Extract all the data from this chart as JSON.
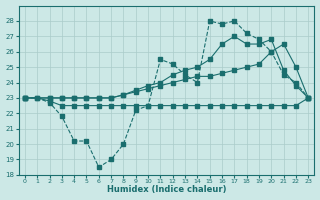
{
  "xlabel": "Humidex (Indice chaleur)",
  "xlim": [
    -0.5,
    23.5
  ],
  "ylim": [
    18,
    29
  ],
  "yticks": [
    18,
    19,
    20,
    21,
    22,
    23,
    24,
    25,
    26,
    27,
    28
  ],
  "xticks": [
    0,
    1,
    2,
    3,
    4,
    5,
    6,
    7,
    8,
    9,
    10,
    11,
    12,
    13,
    14,
    15,
    16,
    17,
    18,
    19,
    20,
    21,
    22,
    23
  ],
  "bg_color": "#cce8e6",
  "grid_color": "#aaccca",
  "line_color": "#1a6e6e",
  "lines": [
    {
      "x": [
        0,
        1,
        2,
        3,
        4,
        5,
        6,
        7,
        8,
        9,
        10,
        11,
        12,
        13,
        14,
        15,
        16,
        17,
        18,
        19,
        20,
        21,
        22,
        23
      ],
      "y": [
        23,
        23,
        22.8,
        22.5,
        22.5,
        22.5,
        22.5,
        22.5,
        22.5,
        22.5,
        22.5,
        22.5,
        22.5,
        22.5,
        22.5,
        22.5,
        22.5,
        22.5,
        22.5,
        22.5,
        22.5,
        22.5,
        22.5,
        23
      ],
      "style": "-",
      "marker": "s",
      "markersize": 2.5,
      "lw": 0.8
    },
    {
      "x": [
        0,
        2,
        3,
        4,
        5,
        6,
        7,
        8,
        9,
        10,
        11,
        12,
        13,
        14,
        15,
        16,
        17,
        18,
        19,
        20,
        21,
        22,
        23
      ],
      "y": [
        23,
        23,
        23,
        23,
        23,
        23,
        23,
        23.2,
        23.4,
        23.6,
        23.8,
        24.0,
        24.2,
        24.4,
        24.4,
        24.6,
        24.8,
        25.0,
        25.2,
        26.0,
        26.5,
        25.0,
        23
      ],
      "style": "-",
      "marker": "s",
      "markersize": 2.5,
      "lw": 0.8
    },
    {
      "x": [
        0,
        2,
        3,
        4,
        5,
        6,
        7,
        8,
        9,
        10,
        11,
        12,
        13,
        14,
        15,
        16,
        17,
        18,
        19,
        20,
        21,
        22,
        23
      ],
      "y": [
        23,
        23,
        23,
        23,
        23,
        23,
        23,
        23.2,
        23.5,
        23.8,
        24.0,
        24.5,
        24.8,
        25.0,
        25.5,
        26.5,
        27.0,
        26.5,
        26.5,
        26.8,
        24.8,
        23.8,
        23
      ],
      "style": "-",
      "marker": "s",
      "markersize": 2.5,
      "lw": 0.8
    },
    {
      "x": [
        0,
        1,
        2,
        3,
        4,
        5,
        6,
        7,
        8,
        9,
        10,
        11,
        12,
        13,
        14,
        15,
        16,
        17,
        18,
        19,
        20,
        21,
        22,
        23
      ],
      "y": [
        23,
        23,
        22.7,
        21.8,
        20.2,
        20.2,
        18.5,
        19.0,
        20.0,
        22.2,
        22.5,
        25.5,
        25.2,
        24.5,
        24.0,
        28.0,
        27.8,
        28.0,
        27.2,
        26.8,
        26.0,
        24.5,
        24.0,
        23
      ],
      "style": "--",
      "marker": "s",
      "markersize": 2.5,
      "lw": 0.8
    }
  ]
}
